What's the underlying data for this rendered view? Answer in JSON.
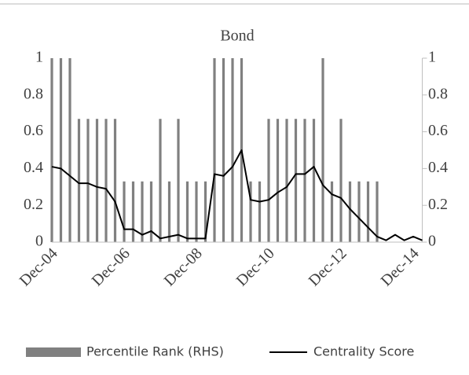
{
  "chart_data": {
    "type": "bar",
    "title": "Bond",
    "categories": [
      "Dec-04",
      null,
      null,
      null,
      null,
      null,
      null,
      null,
      "Dec-06",
      null,
      null,
      null,
      null,
      null,
      null,
      null,
      "Dec-08",
      null,
      null,
      null,
      null,
      null,
      null,
      null,
      "Dec-10",
      null,
      null,
      null,
      null,
      null,
      null,
      null,
      "Dec-12",
      null,
      null,
      null,
      null,
      null,
      null,
      null,
      "Dec-14",
      null
    ],
    "series": [
      {
        "name": "Percentile Rank (RHS)",
        "type": "bar",
        "axis": "y2",
        "color": "#808080",
        "values": [
          1,
          1,
          1,
          0.67,
          0.67,
          0.67,
          0.67,
          0.67,
          0.33,
          0.33,
          0.33,
          0.33,
          0.67,
          0.33,
          0.67,
          0.33,
          0.33,
          0.33,
          1,
          1,
          1,
          1,
          0.33,
          0.33,
          0.67,
          0.67,
          0.67,
          0.67,
          0.67,
          0.67,
          1,
          0.33,
          0.67,
          0.33,
          0.33,
          0.33,
          0.33,
          0,
          0,
          0,
          0,
          0
        ]
      },
      {
        "name": "Centrality Score",
        "type": "line",
        "color": "#000000",
        "values": [
          0.41,
          0.4,
          0.36,
          0.32,
          0.32,
          0.3,
          0.29,
          0.22,
          0.07,
          0.07,
          0.04,
          0.06,
          0.02,
          0.03,
          0.04,
          0.02,
          0.02,
          0.02,
          0.37,
          0.36,
          0.41,
          0.5,
          0.23,
          0.22,
          0.23,
          0.27,
          0.3,
          0.37,
          0.37,
          0.41,
          0.31,
          0.26,
          0.24,
          0.18,
          0.13,
          0.08,
          0.03,
          0.01,
          0.04,
          0.01,
          0.03,
          0.01
        ]
      }
    ],
    "ylim": [
      0,
      1
    ],
    "yticks": [
      0,
      0.2,
      0.4,
      0.6,
      0.8,
      1
    ],
    "y2lim": [
      0,
      1
    ],
    "y2ticks": [
      0,
      0.2,
      0.4,
      0.6,
      0.8,
      1
    ]
  }
}
